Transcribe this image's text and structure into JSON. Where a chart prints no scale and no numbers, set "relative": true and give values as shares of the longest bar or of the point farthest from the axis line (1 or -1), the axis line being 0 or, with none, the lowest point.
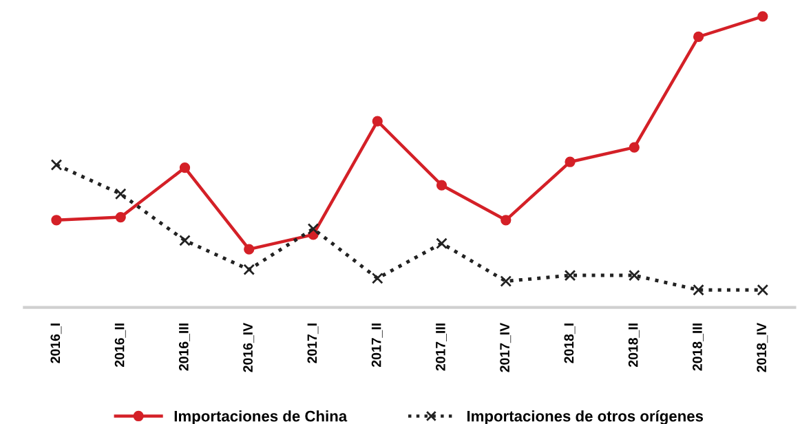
{
  "chart_data": {
    "type": "line",
    "relative": true,
    "categories": [
      "2016_I",
      "2016_II",
      "2016_III",
      "2016_IV",
      "2017_I",
      "2017_II",
      "2017_III",
      "2017_IV",
      "2018_I",
      "2018_II",
      "2018_III",
      "2018_IV"
    ],
    "series": [
      {
        "name": "Importaciones de China",
        "color": "#d42027",
        "marker": "circle",
        "line_style": "solid",
        "values": [
          0.3,
          0.31,
          0.48,
          0.2,
          0.25,
          0.64,
          0.42,
          0.3,
          0.5,
          0.55,
          0.93,
          1.0
        ]
      },
      {
        "name": "Importaciones de otros orígenes",
        "color": "#222222",
        "marker": "cross",
        "line_style": "dotted",
        "values": [
          0.49,
          0.39,
          0.23,
          0.13,
          0.27,
          0.1,
          0.22,
          0.09,
          0.11,
          0.11,
          0.06,
          0.06
        ]
      }
    ],
    "legend": "bottom",
    "grid": false
  }
}
